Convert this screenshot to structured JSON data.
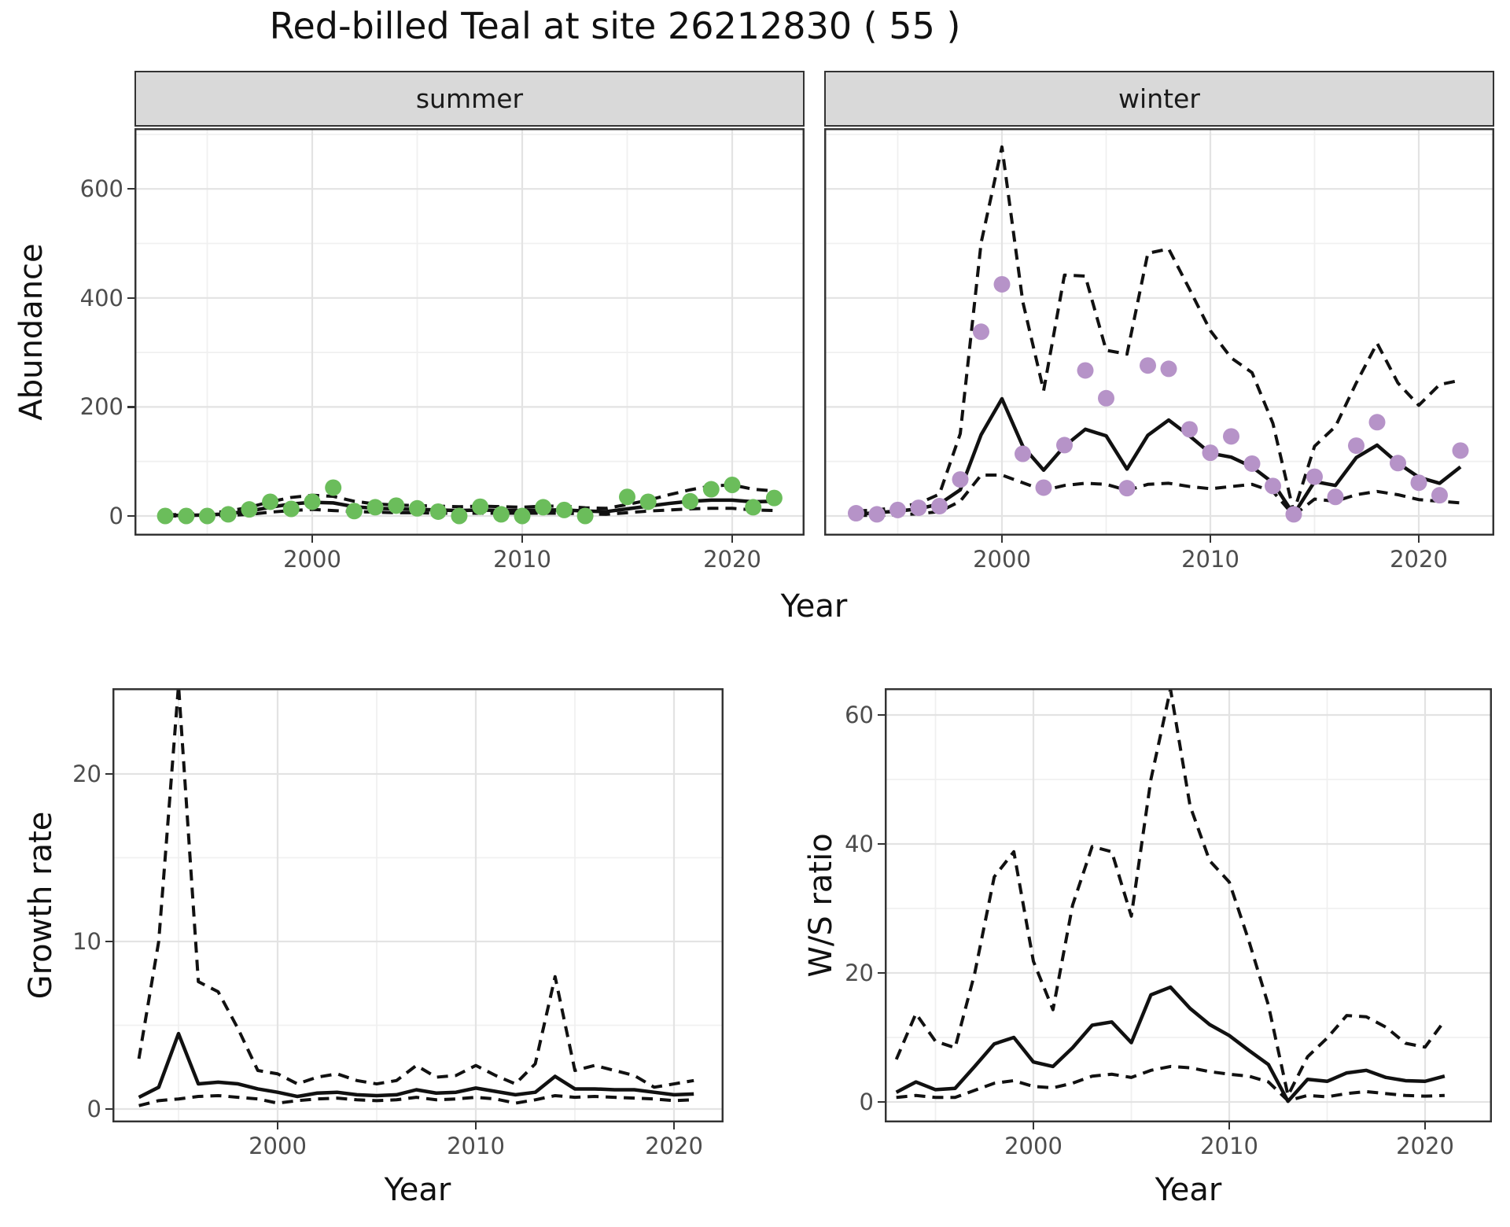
{
  "title": "Red-billed Teal at site 26212830 ( 55 )",
  "facets": {
    "summer": "summer",
    "winter": "winter"
  },
  "axis_titles": {
    "abundance": "Abundance",
    "year_top": "Year",
    "growth": "Growth rate",
    "ws": "W/S ratio",
    "year_growth": "Year",
    "year_ws": "Year"
  },
  "colors": {
    "summer_point": "#6bbd5b",
    "winter_point": "#b693c8",
    "line": "#111111",
    "strip_bg": "#d9d9d9",
    "panel_border": "#333333",
    "grid_major": "#e3e3e3",
    "grid_minor": "#f0f0f0",
    "tick_text": "#4d4d4d"
  },
  "chart_data": [
    {
      "id": "abundance-summer",
      "type": "line",
      "facet": "summer",
      "title": "Abundance - summer facet",
      "xlabel": "Year",
      "ylabel": "Abundance",
      "start_year": 1993,
      "x_ticks": [
        2000,
        2010,
        2020
      ],
      "x_minor": [
        1995,
        2005,
        2015
      ],
      "y_ticks": [
        0,
        200,
        400,
        600
      ],
      "y_minor": [
        100,
        300,
        500,
        700
      ],
      "ylim": [
        -36,
        711
      ],
      "legend": "none",
      "grid": true,
      "series": [
        {
          "name": "observed",
          "style": "points",
          "values": [
            0,
            0,
            0,
            3,
            12,
            26,
            13,
            26,
            52,
            9,
            16,
            19,
            14,
            8,
            0,
            17,
            3,
            0,
            16,
            11,
            0,
            null,
            35,
            26,
            null,
            27,
            49,
            57,
            16,
            33
          ]
        },
        {
          "name": "fit",
          "style": "solid",
          "values": [
            1,
            1,
            2,
            4,
            9,
            16,
            22,
            25,
            24,
            17,
            14,
            13,
            12,
            11,
            10,
            11,
            10,
            10,
            11,
            11,
            9,
            8,
            13,
            18,
            23,
            27,
            29,
            29,
            26,
            27
          ]
        },
        {
          "name": "ci_upper",
          "style": "dashed",
          "values": [
            2,
            3,
            5,
            9,
            16,
            26,
            34,
            38,
            36,
            27,
            22,
            20,
            19,
            18,
            17,
            18,
            17,
            16,
            18,
            18,
            15,
            14,
            21,
            29,
            39,
            48,
            55,
            57,
            49,
            46
          ]
        },
        {
          "name": "ci_lower",
          "style": "dashed",
          "values": [
            0,
            0,
            0,
            1,
            3,
            7,
            10,
            12,
            10,
            8,
            7,
            6,
            6,
            5,
            5,
            5,
            5,
            5,
            5,
            5,
            4,
            3,
            6,
            9,
            11,
            13,
            14,
            14,
            11,
            10
          ]
        }
      ]
    },
    {
      "id": "abundance-winter",
      "type": "line",
      "facet": "winter",
      "title": "Abundance - winter facet",
      "xlabel": "Year",
      "ylabel": "Abundance",
      "start_year": 1993,
      "x_ticks": [
        2000,
        2010,
        2020
      ],
      "x_minor": [
        1995,
        2005,
        2015
      ],
      "y_ticks": [
        0,
        200,
        400,
        600
      ],
      "y_minor": [
        100,
        300,
        500,
        700
      ],
      "ylim": [
        -36,
        711
      ],
      "legend": "none",
      "grid": true,
      "series": [
        {
          "name": "observed",
          "style": "points",
          "values": [
            5,
            3,
            11,
            15,
            18,
            67,
            338,
            425,
            114,
            52,
            130,
            267,
            216,
            51,
            276,
            270,
            159,
            116,
            146,
            96,
            55,
            3,
            72,
            35,
            129,
            172,
            97,
            61,
            38,
            120
          ]
        },
        {
          "name": "fit",
          "style": "solid",
          "values": [
            3,
            6,
            9,
            13,
            22,
            48,
            149,
            215,
            128,
            84,
            128,
            159,
            147,
            86,
            148,
            176,
            147,
            115,
            108,
            90,
            61,
            3,
            63,
            56,
            107,
            130,
            97,
            71,
            60,
            90
          ]
        },
        {
          "name": "ci_upper",
          "style": "dashed",
          "values": [
            9,
            11,
            16,
            23,
            40,
            151,
            501,
            677,
            393,
            230,
            442,
            440,
            304,
            297,
            482,
            490,
            416,
            340,
            290,
            263,
            170,
            7,
            128,
            164,
            244,
            317,
            244,
            203,
            241,
            249
          ]
        },
        {
          "name": "ci_lower",
          "style": "dashed",
          "values": [
            1,
            1,
            2,
            4,
            8,
            27,
            75,
            75,
            61,
            47,
            56,
            60,
            58,
            47,
            58,
            60,
            54,
            50,
            54,
            58,
            45,
            1,
            31,
            27,
            39,
            45,
            39,
            30,
            27,
            24
          ]
        }
      ]
    },
    {
      "id": "growth-rate",
      "type": "line",
      "title": "Growth rate",
      "xlabel": "Year",
      "ylabel": "Growth rate",
      "start_year": 1993,
      "x_ticks": [
        2000,
        2010,
        2020
      ],
      "x_minor": [
        1995,
        2005,
        2015
      ],
      "y_ticks": [
        0,
        10,
        20
      ],
      "y_minor": [
        5,
        15,
        25
      ],
      "ylim": [
        -0.8,
        25.9
      ],
      "legend": "none",
      "grid": true,
      "series": [
        {
          "name": "fit",
          "style": "solid",
          "values": [
            0.7,
            1.3,
            4.5,
            1.5,
            1.6,
            1.5,
            1.2,
            1.0,
            0.75,
            0.95,
            1.0,
            0.85,
            0.8,
            0.85,
            1.15,
            0.95,
            1.0,
            1.25,
            1.05,
            0.85,
            1.0,
            1.95,
            1.2,
            1.2,
            1.15,
            1.15,
            1.0,
            0.85,
            0.9
          ]
        },
        {
          "name": "ci_upper",
          "style": "dashed",
          "values": [
            3.0,
            10.0,
            25.3,
            7.6,
            7.0,
            4.8,
            2.3,
            2.1,
            1.5,
            1.9,
            2.1,
            1.7,
            1.5,
            1.7,
            2.6,
            1.9,
            2.0,
            2.6,
            2.0,
            1.5,
            2.7,
            7.9,
            2.3,
            2.6,
            2.3,
            2.0,
            1.3,
            1.5,
            1.7
          ]
        },
        {
          "name": "ci_lower",
          "style": "dashed",
          "values": [
            0.2,
            0.5,
            0.6,
            0.75,
            0.8,
            0.7,
            0.6,
            0.35,
            0.5,
            0.6,
            0.65,
            0.55,
            0.5,
            0.55,
            0.7,
            0.55,
            0.6,
            0.7,
            0.6,
            0.35,
            0.55,
            0.8,
            0.7,
            0.75,
            0.7,
            0.65,
            0.6,
            0.5,
            0.55
          ]
        }
      ]
    },
    {
      "id": "ws-ratio",
      "type": "line",
      "title": "W/S ratio",
      "xlabel": "Year",
      "ylabel": "W/S ratio",
      "start_year": 1993,
      "x_ticks": [
        2000,
        2010,
        2020
      ],
      "x_minor": [
        1995,
        2005,
        2015
      ],
      "y_ticks": [
        0,
        20,
        40,
        60
      ],
      "y_minor": [
        10,
        30,
        50
      ],
      "ylim": [
        -3.2,
        64.3
      ],
      "legend": "none",
      "grid": true,
      "series": [
        {
          "name": "fit",
          "style": "solid",
          "values": [
            1.5,
            3.1,
            1.9,
            2.1,
            5.5,
            9.0,
            10.0,
            6.2,
            5.5,
            8.4,
            11.9,
            12.4,
            9.2,
            16.6,
            17.8,
            14.5,
            12.0,
            10.3,
            8.0,
            5.8,
            0.1,
            3.5,
            3.2,
            4.5,
            4.9,
            3.8,
            3.3,
            3.2,
            4.0
          ]
        },
        {
          "name": "ci_upper",
          "style": "dashed",
          "values": [
            6.6,
            13.7,
            9.4,
            8.4,
            19.9,
            34.9,
            38.8,
            21.8,
            14.3,
            30.5,
            39.6,
            38.8,
            28.8,
            50.0,
            64.0,
            45.9,
            37.4,
            34.1,
            25.0,
            15.0,
            1.0,
            7.0,
            9.9,
            13.4,
            13.2,
            11.6,
            9.1,
            8.5,
            12.6
          ]
        },
        {
          "name": "ci_lower",
          "style": "dashed",
          "values": [
            0.7,
            1.0,
            0.7,
            0.7,
            1.8,
            2.9,
            3.3,
            2.4,
            2.2,
            2.9,
            4.0,
            4.3,
            3.8,
            4.9,
            5.5,
            5.3,
            4.7,
            4.3,
            4.0,
            3.1,
            0.2,
            1.0,
            0.8,
            1.3,
            1.6,
            1.3,
            1.0,
            0.9,
            1.0
          ]
        }
      ]
    }
  ]
}
